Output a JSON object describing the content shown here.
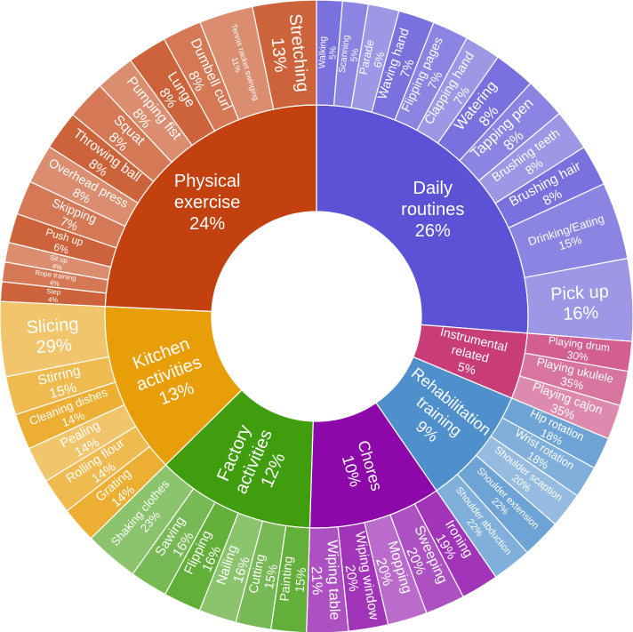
{
  "chart_data": {
    "type": "sunburst",
    "categories": [
      {
        "name": "Daily routines",
        "value_label": "26%",
        "value": 26,
        "color": "#5b52d6",
        "children": [
          {
            "name": "Walking",
            "value_label": "5%",
            "value": 5
          },
          {
            "name": "Scanning",
            "value_label": "5%",
            "value": 5
          },
          {
            "name": "Parade",
            "value_label": "6%",
            "value": 6
          },
          {
            "name": "Waving hand",
            "value_label": "7%",
            "value": 7
          },
          {
            "name": "Flipping pages",
            "value_label": "7%",
            "value": 7
          },
          {
            "name": "Clapping hand",
            "value_label": "7%",
            "value": 7
          },
          {
            "name": "Watering",
            "value_label": "8%",
            "value": 8
          },
          {
            "name": "Tapping pen",
            "value_label": "8%",
            "value": 8
          },
          {
            "name": "Brushing teeth",
            "value_label": "8%",
            "value": 8
          },
          {
            "name": "Brushing hair",
            "value_label": "8%",
            "value": 8
          },
          {
            "name": "Drinking/Eating",
            "value_label": "15%",
            "value": 15
          },
          {
            "name": "Pick up",
            "value_label": "16%",
            "value": 16
          }
        ]
      },
      {
        "name": "Instrumental related",
        "value_label": "5%",
        "value": 5,
        "color": "#c83c78",
        "children": [
          {
            "name": "Playing drum",
            "value_label": "30%",
            "value": 30
          },
          {
            "name": "Playing ukulele",
            "value_label": "35%",
            "value": 35
          },
          {
            "name": "Playing cajon",
            "value_label": "35%",
            "value": 35
          }
        ]
      },
      {
        "name": "Rehabilitation training",
        "value_label": "9%",
        "value": 9,
        "color": "#4e8fcc",
        "children": [
          {
            "name": "Hip rotation",
            "value_label": "18%",
            "value": 18
          },
          {
            "name": "Wrist rotation",
            "value_label": "18%",
            "value": 18
          },
          {
            "name": "Shoulder scaption",
            "value_label": "20%",
            "value": 20
          },
          {
            "name": "Shoulder extension",
            "value_label": "22%",
            "value": 22
          },
          {
            "name": "Shoulder abduction",
            "value_label": "22%",
            "value": 22
          }
        ]
      },
      {
        "name": "Chores",
        "value_label": "10%",
        "value": 10,
        "color": "#8c08a8",
        "children": [
          {
            "name": "Ironing",
            "value_label": "19%",
            "value": 19
          },
          {
            "name": "Sweeping",
            "value_label": "20%",
            "value": 20
          },
          {
            "name": "Mopping",
            "value_label": "20%",
            "value": 20
          },
          {
            "name": "Wiping window",
            "value_label": "20%",
            "value": 20
          },
          {
            "name": "Wiping table",
            "value_label": "21%",
            "value": 21
          }
        ]
      },
      {
        "name": "Factory activities",
        "value_label": "12%",
        "value": 12,
        "color": "#3f9d0e",
        "children": [
          {
            "name": "Painting",
            "value_label": "15%",
            "value": 15
          },
          {
            "name": "Cutting",
            "value_label": "15%",
            "value": 15
          },
          {
            "name": "Nailing",
            "value_label": "16%",
            "value": 16
          },
          {
            "name": "Flipping",
            "value_label": "16%",
            "value": 16
          },
          {
            "name": "Sawing",
            "value_label": "16%",
            "value": 16
          },
          {
            "name": "Shaking clothes",
            "value_label": "23%",
            "value": 23
          }
        ]
      },
      {
        "name": "Kitchen activities",
        "value_label": "13%",
        "value": 13,
        "color": "#e89e08",
        "children": [
          {
            "name": "Grating",
            "value_label": "14%",
            "value": 14
          },
          {
            "name": "Rolling flour",
            "value_label": "14%",
            "value": 14
          },
          {
            "name": "Pealing",
            "value_label": "14%",
            "value": 14
          },
          {
            "name": "Cleaning dishes",
            "value_label": "14%",
            "value": 14
          },
          {
            "name": "Stirring",
            "value_label": "15%",
            "value": 15
          },
          {
            "name": "Slicing",
            "value_label": "29%",
            "value": 29
          }
        ]
      },
      {
        "name": "Physical exercise",
        "value_label": "24%",
        "value": 24,
        "color": "#c2410f",
        "children": [
          {
            "name": "Step",
            "value_label": "4%",
            "value": 4
          },
          {
            "name": "Rope training",
            "value_label": "4%",
            "value": 4
          },
          {
            "name": "Sit up",
            "value_label": "4%",
            "value": 4
          },
          {
            "name": "Push up",
            "value_label": "6%",
            "value": 6
          },
          {
            "name": "Skipping",
            "value_label": "7%",
            "value": 7
          },
          {
            "name": "Overhead press",
            "value_label": "8%",
            "value": 8
          },
          {
            "name": "Throwing ball",
            "value_label": "8%",
            "value": 8
          },
          {
            "name": "Squat",
            "value_label": "8%",
            "value": 8
          },
          {
            "name": "Pumping fist",
            "value_label": "8%",
            "value": 8
          },
          {
            "name": "Lunge",
            "value_label": "8%",
            "value": 8
          },
          {
            "name": "Dumbell curl",
            "value_label": "8%",
            "value": 8
          },
          {
            "name": "Tennis racket swinging",
            "value_label": "11%",
            "value": 11
          },
          {
            "name": "Stretching",
            "value_label": "13%",
            "value": 13
          }
        ]
      }
    ]
  }
}
